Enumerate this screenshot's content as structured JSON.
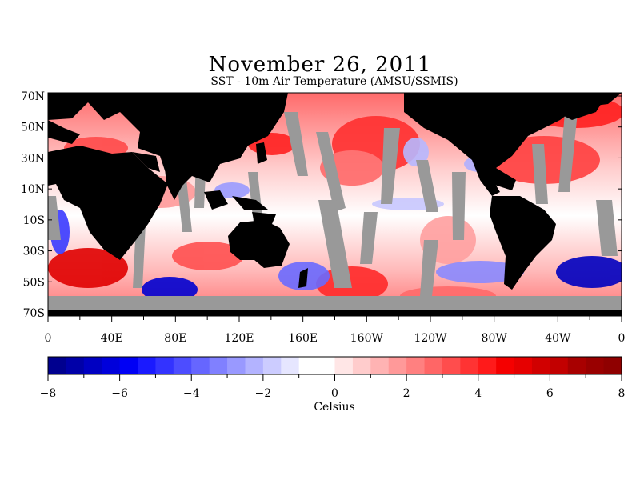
{
  "title": "November 26, 2011",
  "subtitle": "SST - 10m Air Temperature (AMSU/SSMIS)",
  "map": {
    "latitude_labels": [
      "70N",
      "50N",
      "30N",
      "10N",
      "10S",
      "30S",
      "50S",
      "70S"
    ],
    "longitude_labels": [
      "0",
      "40E",
      "80E",
      "120E",
      "160E",
      "160W",
      "120W",
      "80W",
      "40W",
      "0"
    ],
    "land_color": "#000000",
    "no_data_color": "#999999"
  },
  "colorbar": {
    "min": -8,
    "max": 8,
    "step": 0.5,
    "tick_labels": [
      "−8",
      "−6",
      "−4",
      "−2",
      "0",
      "2",
      "4",
      "6",
      "8"
    ],
    "unit": "Celsius",
    "colors": [
      "#00008f",
      "#0000a8",
      "#0000c2",
      "#0000db",
      "#0000f5",
      "#1a1aff",
      "#3333ff",
      "#4d4dff",
      "#6666ff",
      "#8080ff",
      "#9999ff",
      "#b3b3ff",
      "#ccccff",
      "#e6e6ff",
      "#ffffff",
      "#ffffff",
      "#ffe6e6",
      "#ffcccc",
      "#ffb3b3",
      "#ff9999",
      "#ff8080",
      "#ff6666",
      "#ff4d4d",
      "#ff3333",
      "#ff1a1a",
      "#f50000",
      "#e60000",
      "#d10000",
      "#c20000",
      "#a80000",
      "#990000",
      "#8f0000"
    ]
  }
}
